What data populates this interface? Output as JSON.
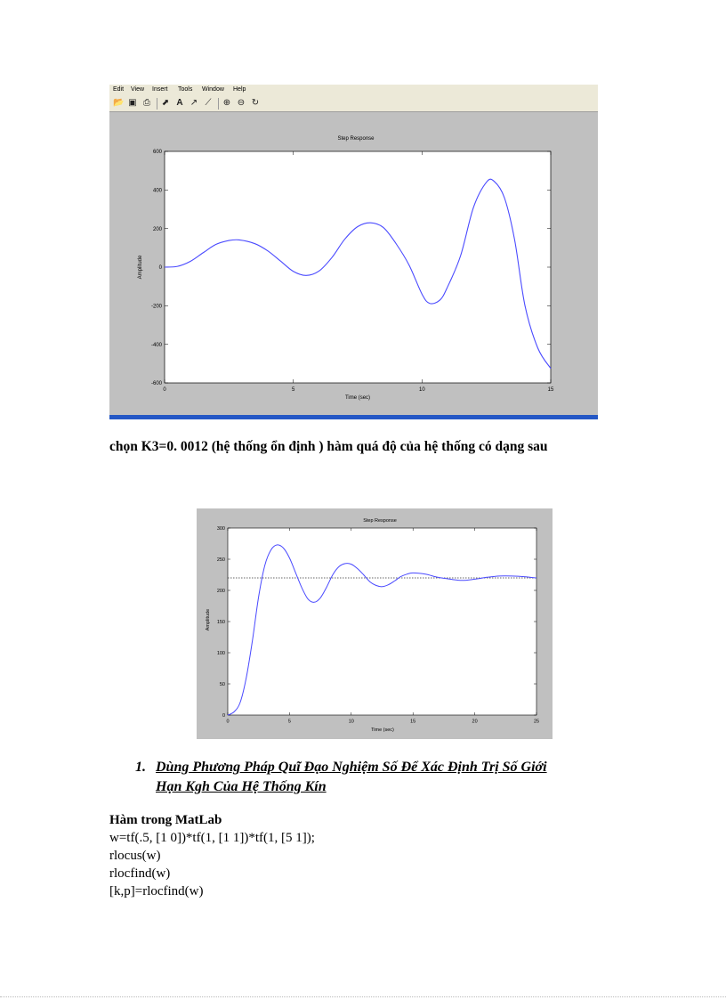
{
  "figure1": {
    "menu": [
      "Edit",
      "View",
      "Insert",
      "Tools",
      "Window",
      "Help"
    ],
    "toolbar_icons": [
      "open-icon",
      "save-icon",
      "print-icon",
      "pointer-icon",
      "text-icon",
      "arrow-icon",
      "line-icon",
      "zoom-in-icon",
      "zoom-out-icon",
      "rotate-icon"
    ],
    "chart_data": {
      "type": "line",
      "title": "Step Response",
      "xlabel": "Time (sec)",
      "ylabel": "Amplitude",
      "xlim": [
        0,
        15
      ],
      "ylim": [
        -600,
        600
      ],
      "xticks": [
        "0",
        "5",
        "10",
        "15"
      ],
      "yticks": [
        "600",
        "400",
        "200",
        "0",
        "-200",
        "-400",
        "-600"
      ],
      "series": [
        {
          "color": "#4a4aff",
          "x": [
            0,
            0.5,
            1,
            1.5,
            2,
            2.5,
            2.9,
            3.5,
            4,
            4.5,
            5,
            5.5,
            6,
            6.5,
            7,
            7.5,
            8,
            8.5,
            9,
            9.5,
            10,
            10.3,
            10.7,
            11,
            11.5,
            12,
            12.5,
            12.8,
            13.2,
            13.6,
            14,
            14.5,
            15
          ],
          "y": [
            0,
            4,
            30,
            75,
            118,
            138,
            141,
            122,
            85,
            32,
            -22,
            -43,
            -20,
            50,
            145,
            210,
            230,
            205,
            120,
            10,
            -140,
            -188,
            -170,
            -100,
            60,
            310,
            440,
            445,
            360,
            140,
            -200,
            -420,
            -525
          ]
        }
      ]
    }
  },
  "caption": "chọn K3=0. 0012 (hệ thống ổn định ) hàm quá độ của hệ thống có dạng sau",
  "figure2": {
    "chart_data": {
      "type": "line",
      "title": "Step Response",
      "xlabel": "Time (sec)",
      "ylabel": "Amplitude",
      "xlim": [
        0,
        25
      ],
      "ylim": [
        0,
        300
      ],
      "xticks": [
        "0",
        "5",
        "10",
        "15",
        "20",
        "25"
      ],
      "yticks": [
        "300",
        "250",
        "200",
        "150",
        "100",
        "50",
        "0"
      ],
      "reference_line": 220,
      "series": [
        {
          "color": "#4a4aff",
          "x": [
            0,
            0.5,
            1,
            1.5,
            2,
            2.5,
            3,
            3.5,
            4,
            4.5,
            5,
            5.5,
            6,
            6.5,
            7,
            7.5,
            8,
            8.5,
            9,
            9.5,
            10,
            10.5,
            11,
            11.5,
            12,
            12.5,
            13,
            13.5,
            14,
            14.5,
            15,
            16,
            17,
            18,
            19,
            20,
            21,
            22,
            23,
            24,
            25
          ],
          "y": [
            0,
            5,
            20,
            60,
            120,
            190,
            240,
            265,
            273,
            268,
            252,
            228,
            204,
            186,
            181,
            188,
            205,
            225,
            238,
            243,
            242,
            235,
            225,
            214,
            208,
            206,
            209,
            215,
            222,
            226,
            228,
            226,
            221,
            218,
            216,
            218,
            221,
            223,
            223,
            222,
            220
          ]
        }
      ]
    }
  },
  "heading": {
    "number": "1.",
    "line1": "Dùng Phương Pháp Quĩ Đạo Nghiệm Số Để Xác Định Trị Số Giới",
    "line2": "Hạn Kgh Của Hệ Thống Kín"
  },
  "code": {
    "title": "Hàm trong MatLab",
    "lines": [
      "w=tf(.5, [1 0])*tf(1, [1 1])*tf(1, [5 1]);",
      "rlocus(w)",
      "rlocfind(w)",
      "[k,p]=rlocfind(w)"
    ]
  }
}
